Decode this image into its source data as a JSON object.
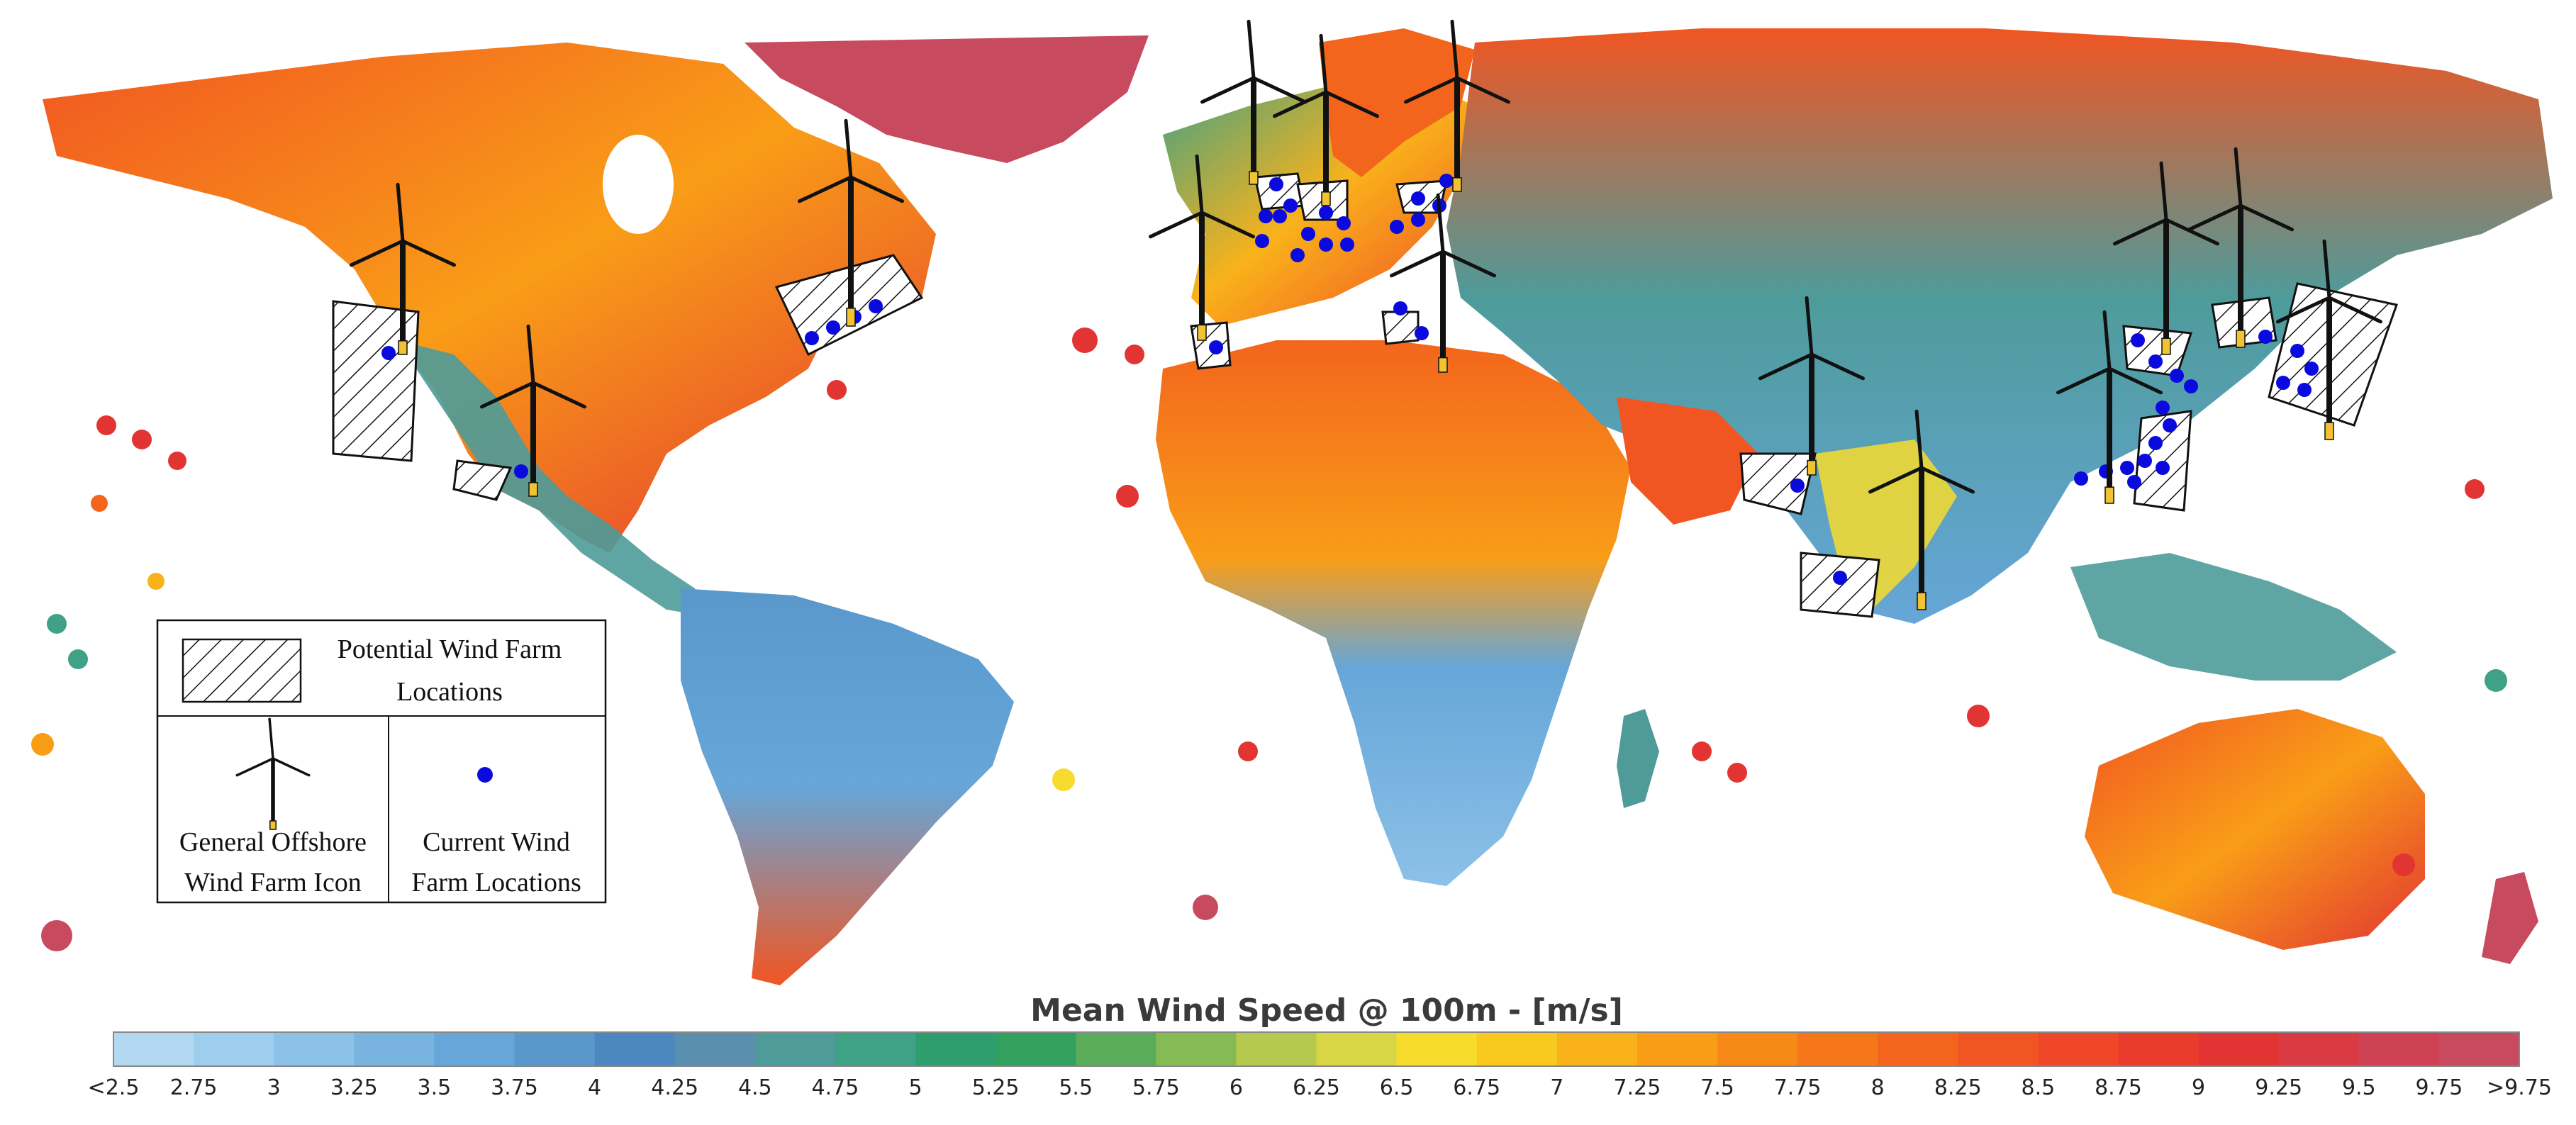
{
  "legend": {
    "potential_label_line1": "Potential Wind Farm",
    "potential_label_line2": "Locations",
    "icon_label_line1": "General Offshore",
    "icon_label_line2": "Wind Farm Icon",
    "current_label_line1": "Current Wind",
    "current_label_line2": "Farm Locations"
  },
  "colorbar": {
    "title": "Mean Wind Speed @ 100m - [m/s]",
    "ticks": [
      "<2.5",
      "2.75",
      "3",
      "3.25",
      "3.5",
      "3.75",
      "4",
      "4.25",
      "4.5",
      "4.75",
      "5",
      "5.25",
      "5.5",
      "5.75",
      "6",
      "6.25",
      "6.5",
      "6.75",
      "7",
      "7.25",
      "7.5",
      "7.75",
      "8",
      "8.25",
      "8.5",
      "8.75",
      "9",
      "9.25",
      "9.5",
      "9.75",
      ">9.75"
    ],
    "colors": [
      "#b3d9f2",
      "#9fcdee",
      "#8cc1e8",
      "#79b3e0",
      "#66a6d8",
      "#5a98cc",
      "#4c88bf",
      "#5a8faf",
      "#4e9b9a",
      "#3fa186",
      "#2f9e6e",
      "#33a060",
      "#5aab5a",
      "#86ba55",
      "#b5c94e",
      "#d9d645",
      "#f7dc2d",
      "#f9c91f",
      "#f9b21a",
      "#f99d17",
      "#f78a17",
      "#f57719",
      "#f3651d",
      "#f15522",
      "#ef4727",
      "#ea3c2c",
      "#e23432",
      "#d93a44",
      "#cf4255",
      "#c84a5e"
    ]
  },
  "colors": {
    "ocean": "#ffffff",
    "current_dot": "#0a0adf",
    "turbine": "#111111",
    "turbine_base": "#f1c232"
  }
}
